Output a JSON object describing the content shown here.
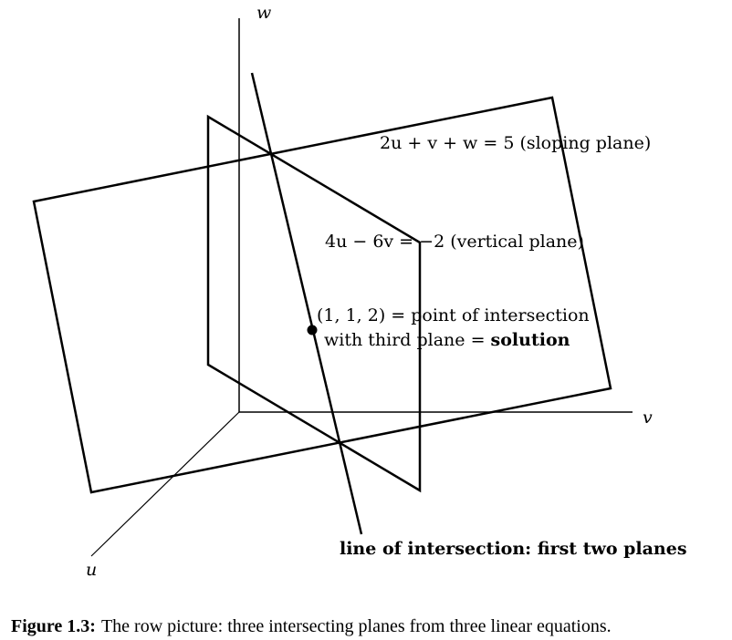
{
  "axes": {
    "w_label": "w",
    "v_label": "v",
    "u_label": "u"
  },
  "labels": {
    "sloping_plane": "2u + v + w = 5 (sloping plane)",
    "vertical_plane": "4u − 6v = −2 (vertical plane)",
    "point_line1": "(1, 1, 2) = point of intersection",
    "point_line2_prefix": "with third plane = ",
    "point_line2_bold": "solution",
    "intersection_line": "line of intersection: first two planes"
  },
  "caption": {
    "label": "Figure 1.3:",
    "text": "The row picture: three intersecting planes from three linear equations."
  }
}
